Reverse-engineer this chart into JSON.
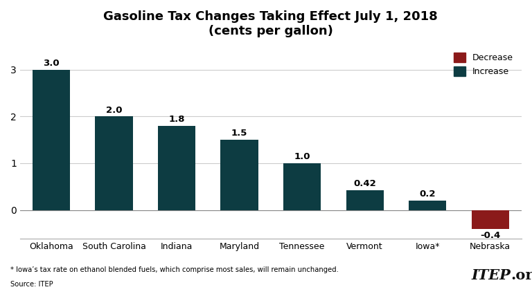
{
  "title_line1": "Gasoline Tax Changes Taking Effect July 1, 2018",
  "title_line2": "(cents per gallon)",
  "categories": [
    "Oklahoma",
    "South Carolina",
    "Indiana",
    "Maryland",
    "Tennessee",
    "Vermont",
    "Iowa*",
    "Nebraska"
  ],
  "values": [
    3.0,
    2.0,
    1.8,
    1.5,
    1.0,
    0.42,
    0.2,
    -0.4
  ],
  "bar_colors": [
    "#0d3c42",
    "#0d3c42",
    "#0d3c42",
    "#0d3c42",
    "#0d3c42",
    "#0d3c42",
    "#0d3c42",
    "#8b1a1a"
  ],
  "increase_color": "#0d3c42",
  "decrease_color": "#8b1a1a",
  "value_labels": [
    "3.0",
    "2.0",
    "1.8",
    "1.5",
    "1.0",
    "0.42",
    "0.2",
    "-0.4"
  ],
  "ylim": [
    -0.62,
    3.55
  ],
  "yticks": [
    0.0,
    1.0,
    2.0,
    3.0
  ],
  "footnote": "* Iowa’s tax rate on ethanol blended fuels, which comprise most sales, will remain unchanged.",
  "source": "Source: ITEP",
  "itep_label_bold": "ITEP",
  "itep_label_plain": ".org",
  "background_color": "#ffffff",
  "legend_decrease": "Decrease",
  "legend_increase": "Increase"
}
